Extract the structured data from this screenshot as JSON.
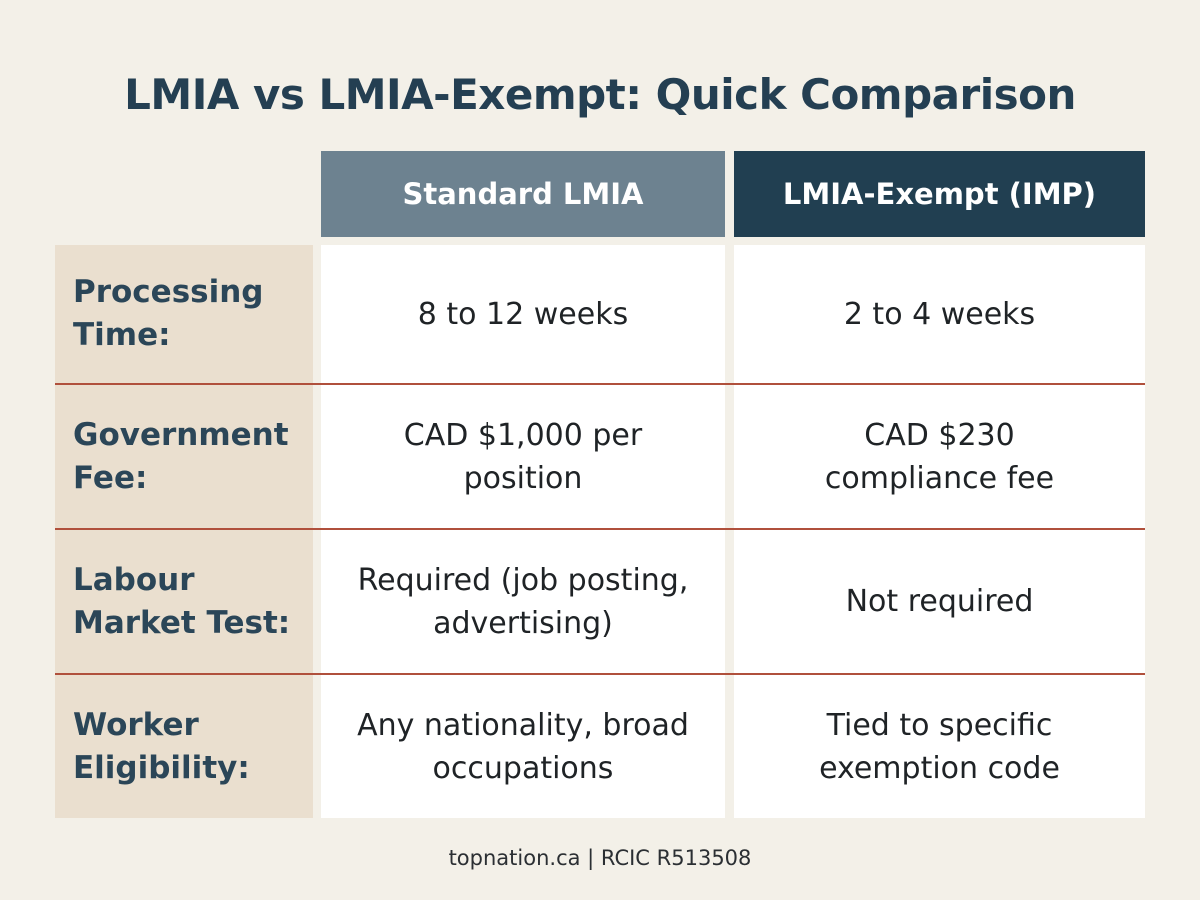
{
  "title": "LMIA vs LMIA-Exempt: Quick Comparison",
  "columns": {
    "standard": "Standard LMIA",
    "exempt": "LMIA-Exempt (IMP)"
  },
  "rows": [
    {
      "label": "Processing Time:",
      "standard": "8 to 12 weeks",
      "exempt": "2 to 4 weeks"
    },
    {
      "label": "Government Fee:",
      "standard": "CAD $1,000 per position",
      "exempt": "CAD $230 compliance fee"
    },
    {
      "label": "Labour Market Test:",
      "standard": "Required (job posting, advertising)",
      "exempt": "Not required"
    },
    {
      "label": "Worker Eligibility:",
      "standard": "Any nationality, broad occupations",
      "exempt": "Tied to specific exemption code"
    }
  ],
  "footer": "topnation.ca | RCIC R513508",
  "colors": {
    "background": "#f3f0e8",
    "title": "#243f52",
    "header_standard": "#6d8290",
    "header_exempt": "#213f51",
    "label_column": "#eadfcf",
    "row_separator": "#b0503c"
  }
}
